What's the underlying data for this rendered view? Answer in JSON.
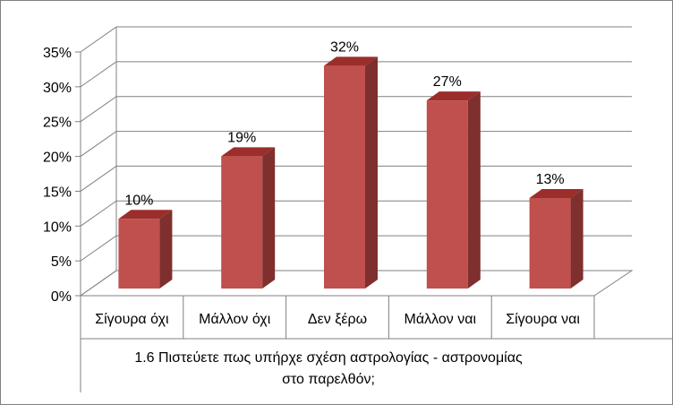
{
  "chart_data": {
    "type": "bar",
    "categories": [
      "Σίγουρα όχι",
      "Μάλλον όχι",
      "Δεν ξέρω",
      "Μάλλον ναι",
      "Σίγουρα ναι"
    ],
    "values": [
      10,
      19,
      32,
      27,
      13
    ],
    "data_labels": [
      "10%",
      "19%",
      "32%",
      "27%",
      "13%"
    ],
    "y_ticks": [
      "0%",
      "5%",
      "10%",
      "15%",
      "20%",
      "25%",
      "30%",
      "35%"
    ],
    "ylim": [
      0,
      35
    ],
    "xlabel_lines": [
      "1.6 Πιστεύετε πως υπήρχε σχέση αστρολογίας - αστρονομίας",
      "στο παρελθόν;"
    ],
    "title": "",
    "ylabel": "",
    "grid": true,
    "three_d": true,
    "colors": {
      "bar_front": "#c0504d",
      "bar_top": "#9b2d2a",
      "bar_side": "#7f2f2d",
      "grid": "#808080",
      "border": "#808080"
    }
  }
}
